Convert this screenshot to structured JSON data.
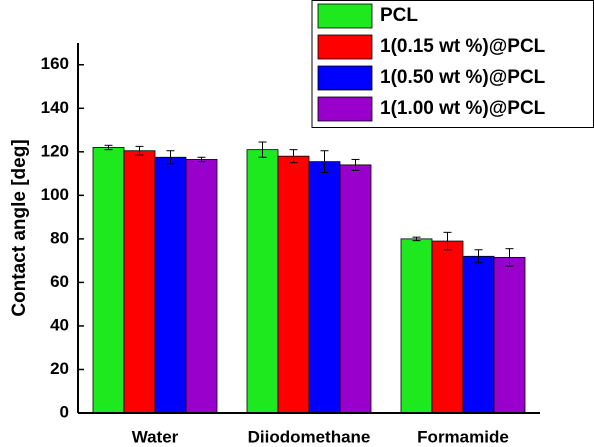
{
  "chart_data": {
    "type": "bar",
    "y_label": "Contact angle [deg]",
    "categories": [
      "Water",
      "Diiodomethane",
      "Formamide"
    ],
    "series": [
      {
        "name": "PCL",
        "color": "#1ee81e",
        "values": [
          122,
          121,
          80
        ],
        "errors": [
          1,
          3.5,
          0.8
        ]
      },
      {
        "name": "1(0.15 wt %)@PCL",
        "color": "#ff0000",
        "values": [
          120.5,
          118,
          79
        ],
        "errors": [
          2,
          3,
          4
        ]
      },
      {
        "name": "1(0.50 wt %)@PCL",
        "color": "#0000ff",
        "values": [
          117.5,
          115.5,
          72
        ],
        "errors": [
          3,
          5,
          3
        ]
      },
      {
        "name": "1(1.00 wt %)@PCL",
        "color": "#9900cc",
        "values": [
          116.5,
          114,
          71.5
        ],
        "errors": [
          1,
          2.5,
          4
        ]
      }
    ],
    "ylim": [
      0,
      170
    ],
    "yticks": [
      0,
      20,
      40,
      60,
      80,
      100,
      120,
      140,
      160
    ],
    "legend": "top-right"
  }
}
